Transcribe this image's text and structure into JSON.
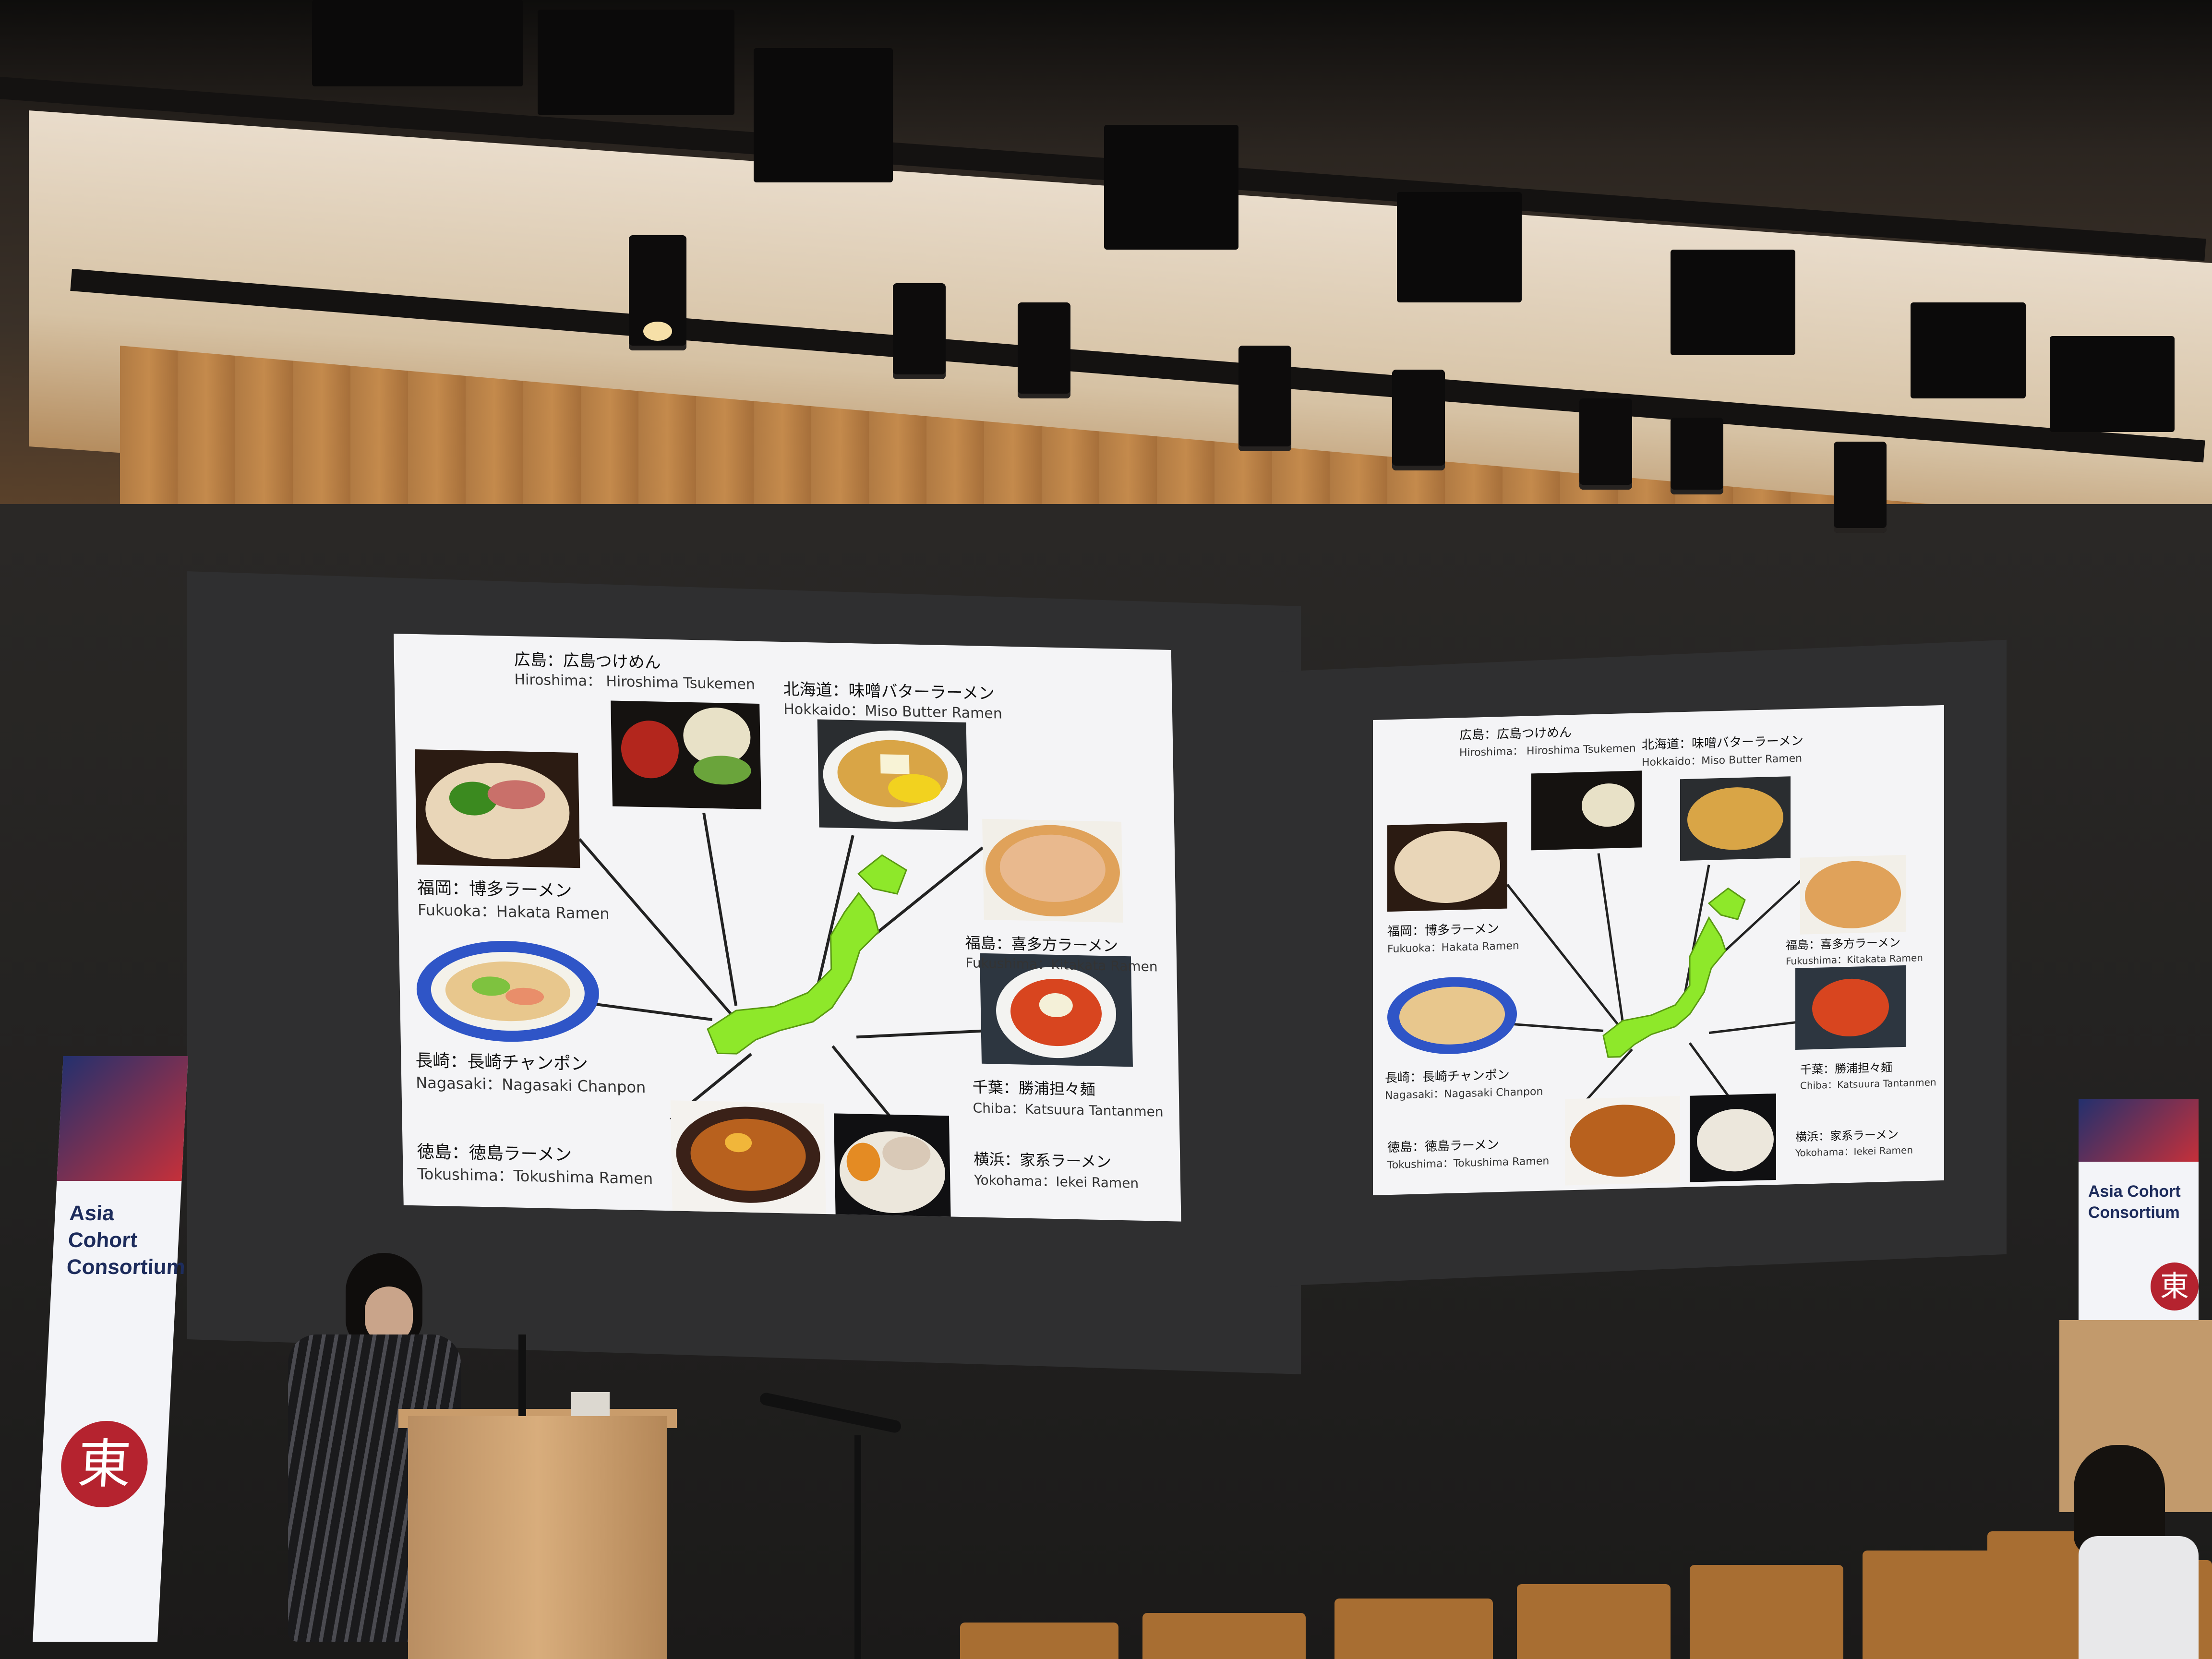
{
  "slide": {
    "hiroshima_jp": "広島：広島つけめん",
    "hiroshima_en": "Hiroshima： Hiroshima Tsukemen",
    "hokkaido_jp": "北海道：味噌バターラーメン",
    "hokkaido_en": "Hokkaido：Miso Butter Ramen",
    "fukuoka_jp": "福岡：博多ラーメン",
    "fukuoka_en": "Fukuoka：Hakata Ramen",
    "fukushima_jp": "福島：喜多方ラーメン",
    "fukushima_en": "Fukushima：Kitakata Ramen",
    "nagasaki_jp": "長崎：長崎チャンポン",
    "nagasaki_en": "Nagasaki：Nagasaki Chanpon",
    "chiba_jp": "千葉：勝浦担々麺",
    "chiba_en": "Chiba：Katsuura Tantanmen",
    "tokushima_jp": "徳島：徳島ラーメン",
    "tokushima_en": "Tokushima：Tokushima Ramen",
    "yokohama_jp": "横浜：家系ラーメン",
    "yokohama_en": "Yokohama：Iekei Ramen"
  },
  "banner": {
    "left_title": "Asia Cohort Consortium",
    "right_title": "Asia Cohort Consortium",
    "kanji": "東"
  },
  "colors": {
    "japan_map": "#8ee82a",
    "slide_background": "#f4f4f6",
    "ceiling_wood": "#b07a43"
  }
}
